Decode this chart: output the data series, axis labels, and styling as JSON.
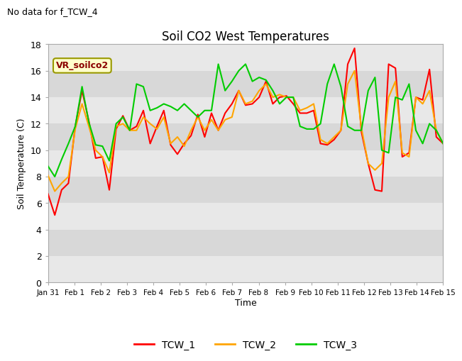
{
  "title": "Soil CO2 West Temperatures",
  "subtitle": "No data for f_TCW_4",
  "ylabel": "Soil Temperature (C)",
  "xlabel": "Time",
  "annotation": "VR_soilco2",
  "ylim": [
    0,
    18
  ],
  "yticks": [
    0,
    2,
    4,
    6,
    8,
    10,
    12,
    14,
    16,
    18
  ],
  "legend_labels": [
    "TCW_1",
    "TCW_2",
    "TCW_3"
  ],
  "line_colors": [
    "#ff0000",
    "#ffa500",
    "#00cc00"
  ],
  "x_labels": [
    "Jan 31",
    "Feb 1",
    "Feb 2",
    "Feb 3",
    "Feb 4",
    "Feb 5",
    "Feb 6",
    "Feb 7",
    "Feb 8",
    "Feb 9",
    "Feb 10",
    "Feb 11",
    "Feb 12",
    "Feb 13",
    "Feb 14",
    "Feb 15"
  ],
  "TCW_1": [
    6.7,
    5.1,
    7.0,
    7.5,
    11.8,
    14.5,
    12.2,
    9.4,
    9.5,
    7.0,
    11.6,
    12.6,
    11.5,
    11.8,
    13.0,
    10.5,
    11.8,
    13.0,
    10.4,
    9.7,
    10.5,
    11.1,
    12.7,
    11.0,
    12.8,
    11.5,
    12.8,
    13.5,
    14.5,
    13.4,
    13.5,
    14.0,
    15.2,
    13.5,
    14.0,
    14.1,
    13.5,
    12.8,
    12.8,
    13.0,
    10.5,
    10.4,
    10.8,
    11.5,
    16.5,
    17.7,
    11.4,
    9.0,
    7.0,
    6.9,
    16.5,
    16.2,
    9.5,
    9.8,
    14.0,
    13.8,
    16.1,
    11.0,
    10.5
  ],
  "TCW_2": [
    8.1,
    6.9,
    7.5,
    8.0,
    11.6,
    13.5,
    11.8,
    10.0,
    9.5,
    8.3,
    11.8,
    12.0,
    11.5,
    11.5,
    12.5,
    12.0,
    11.6,
    12.5,
    10.5,
    11.0,
    10.3,
    11.5,
    12.5,
    11.5,
    12.3,
    11.5,
    12.3,
    12.5,
    14.5,
    13.5,
    13.7,
    14.5,
    15.0,
    14.0,
    14.2,
    14.0,
    14.0,
    13.0,
    13.2,
    13.5,
    10.8,
    10.5,
    11.0,
    11.5,
    15.0,
    16.0,
    11.7,
    9.0,
    8.5,
    9.0,
    14.0,
    15.2,
    9.8,
    9.5,
    14.0,
    13.5,
    14.5,
    11.5,
    10.5
  ],
  "TCW_3": [
    8.8,
    8.0,
    9.3,
    10.5,
    11.8,
    14.8,
    12.1,
    10.4,
    10.3,
    9.2,
    12.0,
    12.5,
    11.5,
    15.0,
    14.8,
    13.0,
    13.2,
    13.5,
    13.3,
    13.0,
    13.5,
    13.0,
    12.5,
    13.0,
    13.0,
    16.5,
    14.5,
    15.2,
    16.0,
    16.5,
    15.2,
    15.5,
    15.3,
    14.5,
    13.5,
    14.0,
    14.0,
    11.8,
    11.6,
    11.6,
    12.0,
    15.0,
    16.5,
    14.8,
    11.8,
    11.5,
    11.5,
    14.5,
    15.5,
    10.0,
    9.8,
    14.0,
    13.8,
    15.0,
    11.5,
    10.5,
    12.0,
    11.5,
    10.5
  ]
}
